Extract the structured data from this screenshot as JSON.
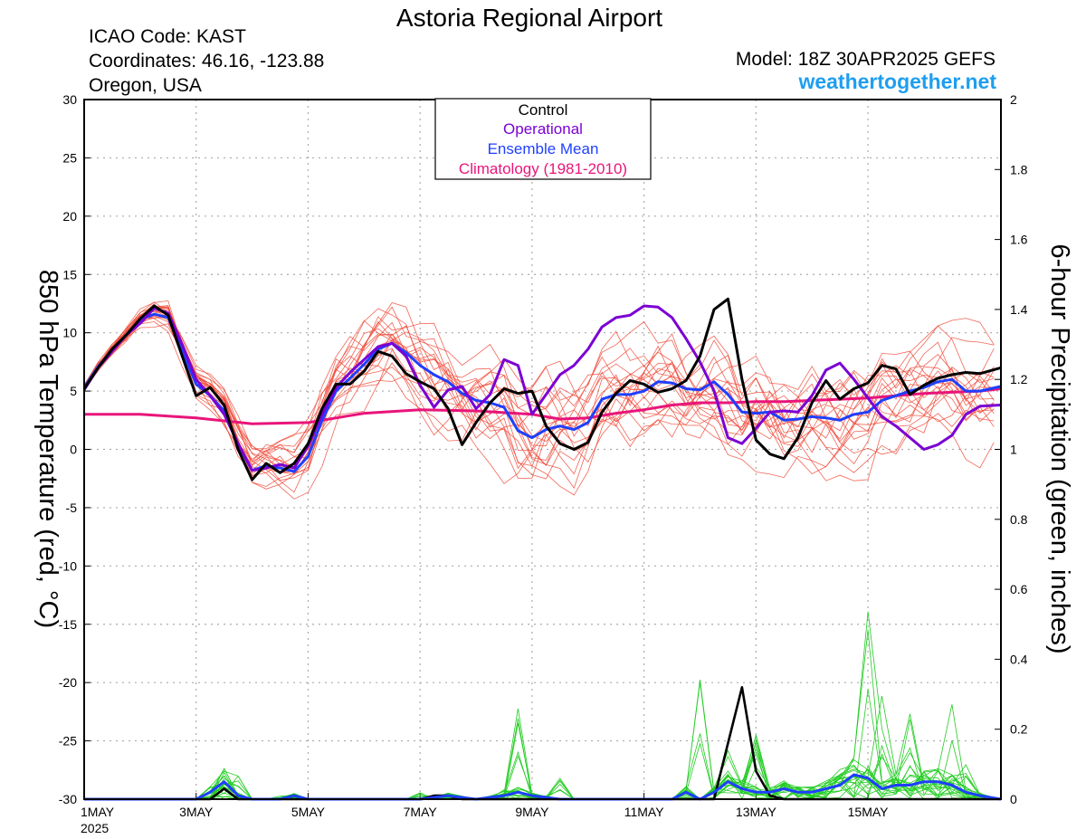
{
  "header": {
    "title": "Astoria Regional Airport",
    "icao": "ICAO Code: KAST",
    "coordinates": "Coordinates: 46.16, -123.88",
    "location": "Oregon, USA",
    "model": "Model: 18Z 30APR2025 GEFS",
    "site": "weathertogether.net"
  },
  "legend": {
    "control": "Control",
    "operational": "Operational",
    "ensemble_mean": "Ensemble Mean",
    "climatology": "Climatology (1981-2010)"
  },
  "colors": {
    "control": "#000000",
    "operational": "#7b00d4",
    "ensemble_mean": "#1f3fff",
    "climatology": "#e8157a",
    "members_temp": "#f04a3a",
    "members_precip": "#22cc22",
    "site": "#1e9ef0",
    "grid": "#aaaaaa"
  },
  "chart_data": {
    "type": "line",
    "title": "Astoria Regional Airport",
    "ylabel": "850 hPa Temperature (red, °C)",
    "y2label": "6-hour Precipitation (green, inches)",
    "xlim": [
      0,
      16.375
    ],
    "ylim": [
      -30,
      30
    ],
    "y2lim": [
      0,
      2
    ],
    "grid": true,
    "x_ticks": [
      {
        "x": 0,
        "label": "1MAY",
        "sublabel": "2025"
      },
      {
        "x": 2,
        "label": "3MAY",
        "sublabel": ""
      },
      {
        "x": 4,
        "label": "5MAY",
        "sublabel": ""
      },
      {
        "x": 6,
        "label": "7MAY",
        "sublabel": ""
      },
      {
        "x": 8,
        "label": "9MAY",
        "sublabel": ""
      },
      {
        "x": 10,
        "label": "11MAY",
        "sublabel": ""
      },
      {
        "x": 12,
        "label": "13MAY",
        "sublabel": ""
      },
      {
        "x": 14,
        "label": "15MAY",
        "sublabel": ""
      }
    ],
    "y_ticks": [
      30,
      25,
      20,
      15,
      10,
      5,
      0,
      -5,
      -10,
      -15,
      -20,
      -25,
      -30
    ],
    "y2_ticks": [
      2,
      1.8,
      1.6,
      1.4,
      1.2,
      1,
      0.8,
      0.6,
      0.4,
      0.2,
      0
    ],
    "temp_series": [
      {
        "name": "Control",
        "points": [
          [
            0,
            5.2
          ],
          [
            0.25,
            7
          ],
          [
            0.5,
            8.6
          ],
          [
            0.75,
            9.8
          ],
          [
            1,
            11.2
          ],
          [
            1.25,
            12.3
          ],
          [
            1.5,
            11.5
          ],
          [
            1.75,
            8
          ],
          [
            2,
            4.6
          ],
          [
            2.25,
            5.3
          ],
          [
            2.5,
            3.8
          ],
          [
            2.75,
            0
          ],
          [
            3,
            -2.6
          ],
          [
            3.25,
            -1.2
          ],
          [
            3.5,
            -2
          ],
          [
            3.75,
            -1.2
          ],
          [
            4,
            0.5
          ],
          [
            4.25,
            3.5
          ],
          [
            4.5,
            5.6
          ],
          [
            4.75,
            5.6
          ],
          [
            5,
            6.7
          ],
          [
            5.25,
            8.4
          ],
          [
            5.5,
            8
          ],
          [
            5.75,
            6.5
          ],
          [
            6,
            5.8
          ],
          [
            6.25,
            5.2
          ],
          [
            6.5,
            3.5
          ],
          [
            6.75,
            0.4
          ],
          [
            7,
            2.3
          ],
          [
            7.25,
            4
          ],
          [
            7.5,
            5.2
          ],
          [
            7.75,
            4.8
          ],
          [
            8,
            5
          ],
          [
            8.25,
            2
          ],
          [
            8.5,
            0.5
          ],
          [
            8.75,
            0
          ],
          [
            9,
            0.6
          ],
          [
            9.25,
            3.2
          ],
          [
            9.5,
            4.8
          ],
          [
            9.75,
            5.9
          ],
          [
            10,
            5.6
          ],
          [
            10.25,
            4.9
          ],
          [
            10.5,
            5.2
          ],
          [
            10.75,
            5.9
          ],
          [
            11,
            8
          ],
          [
            11.25,
            12
          ],
          [
            11.5,
            12.9
          ],
          [
            11.75,
            6
          ],
          [
            12,
            0.8
          ],
          [
            12.25,
            -0.4
          ],
          [
            12.5,
            -0.8
          ],
          [
            12.75,
            1
          ],
          [
            13,
            4
          ],
          [
            13.25,
            5.9
          ],
          [
            13.5,
            4.3
          ],
          [
            13.75,
            5.2
          ],
          [
            14,
            5.7
          ],
          [
            14.25,
            7.2
          ],
          [
            14.5,
            6.9
          ],
          [
            14.75,
            4.7
          ],
          [
            15,
            5.5
          ],
          [
            15.25,
            6.1
          ],
          [
            15.5,
            6.4
          ],
          [
            15.75,
            6.6
          ],
          [
            16,
            6.5
          ],
          [
            16.375,
            7
          ]
        ]
      },
      {
        "name": "Operational",
        "points": [
          [
            0,
            5.1
          ],
          [
            0.25,
            7
          ],
          [
            0.5,
            8.4
          ],
          [
            0.75,
            9.8
          ],
          [
            1,
            10.8
          ],
          [
            1.25,
            12.1
          ],
          [
            1.5,
            11.7
          ],
          [
            1.75,
            9
          ],
          [
            2,
            6
          ],
          [
            2.25,
            4.6
          ],
          [
            2.5,
            3
          ],
          [
            2.75,
            0.5
          ],
          [
            3,
            -1.8
          ],
          [
            3.25,
            -1.6
          ],
          [
            3.5,
            -1.3
          ],
          [
            3.75,
            -1.6
          ],
          [
            4,
            0.3
          ],
          [
            4.25,
            3
          ],
          [
            4.5,
            5.3
          ],
          [
            4.75,
            6.6
          ],
          [
            5,
            7.7
          ],
          [
            5.25,
            8.8
          ],
          [
            5.5,
            9.1
          ],
          [
            5.75,
            8
          ],
          [
            6,
            5.5
          ],
          [
            6.25,
            3.6
          ],
          [
            6.5,
            5.1
          ],
          [
            6.75,
            5.4
          ],
          [
            7,
            3.5
          ],
          [
            7.25,
            4.7
          ],
          [
            7.5,
            7.7
          ],
          [
            7.75,
            7.2
          ],
          [
            8,
            3
          ],
          [
            8.25,
            4.7
          ],
          [
            8.5,
            6.4
          ],
          [
            8.75,
            7.2
          ],
          [
            9,
            8.6
          ],
          [
            9.25,
            10.5
          ],
          [
            9.5,
            11.3
          ],
          [
            9.75,
            11.5
          ],
          [
            10,
            12.3
          ],
          [
            10.25,
            12.2
          ],
          [
            10.5,
            11.3
          ],
          [
            10.75,
            9.5
          ],
          [
            11,
            7.5
          ],
          [
            11.25,
            5
          ],
          [
            11.5,
            1
          ],
          [
            11.75,
            0.5
          ],
          [
            12,
            1.8
          ],
          [
            12.25,
            3.2
          ],
          [
            12.5,
            3.3
          ],
          [
            12.75,
            3.2
          ],
          [
            13,
            4.6
          ],
          [
            13.25,
            6.8
          ],
          [
            13.5,
            7.4
          ],
          [
            13.75,
            6
          ],
          [
            14,
            4.4
          ],
          [
            14.25,
            2.8
          ],
          [
            14.5,
            2
          ],
          [
            14.75,
            1
          ],
          [
            15,
            0
          ],
          [
            15.25,
            0.4
          ],
          [
            15.5,
            1.2
          ],
          [
            15.75,
            3
          ],
          [
            16,
            3.7
          ],
          [
            16.375,
            3.8
          ]
        ]
      },
      {
        "name": "Ensemble Mean",
        "points": [
          [
            0,
            5.3
          ],
          [
            0.25,
            7.1
          ],
          [
            0.5,
            8.5
          ],
          [
            0.75,
            9.8
          ],
          [
            1,
            11.1
          ],
          [
            1.25,
            11.6
          ],
          [
            1.5,
            11.3
          ],
          [
            1.75,
            8.5
          ],
          [
            2,
            5.6
          ],
          [
            2.25,
            4.6
          ],
          [
            2.5,
            3.3
          ],
          [
            2.75,
            0.4
          ],
          [
            3,
            -1.8
          ],
          [
            3.25,
            -1.4
          ],
          [
            3.5,
            -1.6
          ],
          [
            3.75,
            -1.9
          ],
          [
            4,
            -0.6
          ],
          [
            4.25,
            2.5
          ],
          [
            4.5,
            5
          ],
          [
            4.75,
            6.1
          ],
          [
            5,
            7.3
          ],
          [
            5.25,
            8.6
          ],
          [
            5.5,
            9.1
          ],
          [
            5.75,
            8.3
          ],
          [
            6,
            7.2
          ],
          [
            6.25,
            6.4
          ],
          [
            6.5,
            5.8
          ],
          [
            6.75,
            4.8
          ],
          [
            7,
            4.2
          ],
          [
            7.25,
            4
          ],
          [
            7.5,
            3.6
          ],
          [
            7.75,
            1.6
          ],
          [
            8,
            1
          ],
          [
            8.25,
            1.7
          ],
          [
            8.5,
            2
          ],
          [
            8.75,
            1.7
          ],
          [
            9,
            2.3
          ],
          [
            9.25,
            4.3
          ],
          [
            9.5,
            4.7
          ],
          [
            9.75,
            4.7
          ],
          [
            10,
            5
          ],
          [
            10.25,
            5.8
          ],
          [
            10.5,
            5.7
          ],
          [
            10.75,
            5.2
          ],
          [
            11,
            5.1
          ],
          [
            11.25,
            5.8
          ],
          [
            11.5,
            4.7
          ],
          [
            11.75,
            3.2
          ],
          [
            12,
            3.1
          ],
          [
            12.25,
            3.2
          ],
          [
            12.5,
            2.5
          ],
          [
            12.75,
            2.6
          ],
          [
            13,
            2.8
          ],
          [
            13.25,
            2.7
          ],
          [
            13.5,
            2.5
          ],
          [
            13.75,
            3
          ],
          [
            14,
            3.2
          ],
          [
            14.25,
            4.2
          ],
          [
            14.5,
            4.6
          ],
          [
            14.75,
            5
          ],
          [
            15,
            5.3
          ],
          [
            15.25,
            5.8
          ],
          [
            15.5,
            6
          ],
          [
            15.75,
            5
          ],
          [
            16,
            5
          ],
          [
            16.375,
            5.4
          ]
        ]
      },
      {
        "name": "Climatology (1981-2010)",
        "points": [
          [
            0,
            3
          ],
          [
            1,
            3
          ],
          [
            2,
            2.7
          ],
          [
            3,
            2.2
          ],
          [
            4,
            2.3
          ],
          [
            5,
            3.1
          ],
          [
            6,
            3.4
          ],
          [
            7,
            3.3
          ],
          [
            8,
            3
          ],
          [
            8.5,
            2.6
          ],
          [
            9,
            2.7
          ],
          [
            9.5,
            3.1
          ],
          [
            10,
            3.4
          ],
          [
            10.5,
            3.8
          ],
          [
            11,
            4
          ],
          [
            11.5,
            4
          ],
          [
            12,
            4.1
          ],
          [
            12.5,
            4.1
          ],
          [
            13,
            4.2
          ],
          [
            13.5,
            4.3
          ],
          [
            14,
            4.4
          ],
          [
            14.5,
            4.6
          ],
          [
            15,
            4.8
          ],
          [
            15.5,
            4.9
          ],
          [
            16,
            5
          ],
          [
            16.375,
            5.2
          ]
        ]
      }
    ],
    "precip_series": [
      {
        "name": "Control",
        "points": [
          [
            0,
            0
          ],
          [
            2,
            0
          ],
          [
            2.25,
            0
          ],
          [
            2.5,
            0.03
          ],
          [
            2.75,
            0
          ],
          [
            3,
            0
          ],
          [
            6,
            0
          ],
          [
            6.25,
            0.01
          ],
          [
            6.5,
            0.01
          ],
          [
            6.75,
            0
          ],
          [
            10,
            0
          ],
          [
            11.25,
            0
          ],
          [
            11.5,
            0.16
          ],
          [
            11.75,
            0.32
          ],
          [
            12,
            0.08
          ],
          [
            12.25,
            0.01
          ],
          [
            12.5,
            0
          ],
          [
            16.375,
            0
          ]
        ]
      },
      {
        "name": "Ensemble Mean",
        "points": [
          [
            0,
            0
          ],
          [
            2,
            0
          ],
          [
            2.25,
            0.02
          ],
          [
            2.5,
            0.05
          ],
          [
            2.75,
            0.01
          ],
          [
            3,
            0
          ],
          [
            3.5,
            0
          ],
          [
            3.75,
            0.01
          ],
          [
            4,
            0
          ],
          [
            6,
            0
          ],
          [
            6.5,
            0.01
          ],
          [
            7,
            0
          ],
          [
            7.5,
            0.01
          ],
          [
            7.75,
            0.02
          ],
          [
            8,
            0.01
          ],
          [
            8.5,
            0
          ],
          [
            10,
            0
          ],
          [
            10.5,
            0
          ],
          [
            10.75,
            0.02
          ],
          [
            11,
            0
          ],
          [
            11.25,
            0.02
          ],
          [
            11.5,
            0.05
          ],
          [
            11.75,
            0.03
          ],
          [
            12,
            0.02
          ],
          [
            12.25,
            0.02
          ],
          [
            12.5,
            0.03
          ],
          [
            12.75,
            0.02
          ],
          [
            13,
            0.02
          ],
          [
            13.25,
            0.03
          ],
          [
            13.5,
            0.04
          ],
          [
            13.75,
            0.07
          ],
          [
            14,
            0.06
          ],
          [
            14.25,
            0.03
          ],
          [
            14.5,
            0.04
          ],
          [
            14.75,
            0.04
          ],
          [
            15,
            0.05
          ],
          [
            15.25,
            0.05
          ],
          [
            15.5,
            0.04
          ],
          [
            15.75,
            0.02
          ],
          [
            16,
            0.01
          ],
          [
            16.375,
            0
          ]
        ]
      }
    ]
  }
}
